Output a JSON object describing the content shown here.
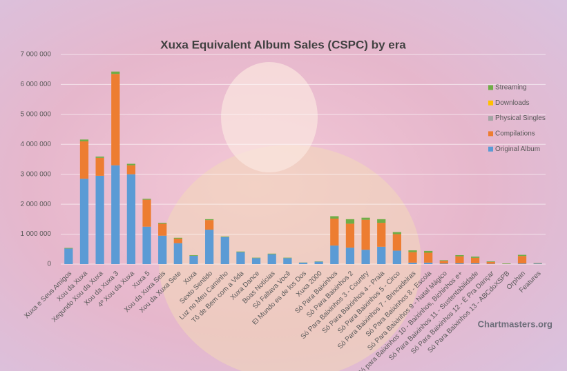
{
  "chart_data": {
    "type": "stacked_bar",
    "title": "Xuxa Equivalent Album Sales (CSPC) by era",
    "watermark": "Chartmasters.org",
    "categories": [
      "Xuxa e Seus Amigos",
      "Xou da Xuxa",
      "Xegundo Xou da Xuxa",
      "Xou da Xuxa 3",
      "4º Xou da Xuxa",
      "Xuxa 5",
      "Xou da Xuxa Seis",
      "Xou da Xuxa Sete",
      "Xuxa",
      "Sexto Sentido",
      "Luz no Meu Caminho",
      "Tô de Bem com a Vida",
      "Xuxa Dance",
      "Boas Notícias",
      "Só Faltava Você",
      "El Mundo es de los Dos",
      "Xuxa 2000",
      "Só Para Baixinhos",
      "Só Para Baixinhos 2",
      "Só Para Baixinhos 3 - Country",
      "Só Para Baixinhos 4 - Praia",
      "Só Para Baixinhos 5 - Circo",
      "Só Para Baixinhos 7 - Brincadeiras",
      "Só Para Baixinhos 8 - Escola",
      "Só Para Baixinhos 9 - Natal Mágico",
      "Só para Baixinhos 10 - Baixinhos, Bichinhos e+",
      "Só Para Baixinhos 11 - Sustentabilidade",
      "Só Para Baixinhos 12 - É Pra Dançar",
      "Só Para Baixinhos 13 - ABCdoXSPB",
      "Orphan",
      "Features"
    ],
    "series": [
      {
        "name": "Original Album",
        "color": "#5b9bd5",
        "values": [
          520000,
          2850000,
          2950000,
          3300000,
          3000000,
          1250000,
          950000,
          700000,
          280000,
          1150000,
          900000,
          400000,
          200000,
          330000,
          200000,
          50000,
          80000,
          620000,
          550000,
          480000,
          580000,
          450000,
          50000,
          50000,
          20000,
          30000,
          30000,
          10000,
          0,
          20000,
          20000
        ]
      },
      {
        "name": "Compilations",
        "color": "#ed7d31",
        "values": [
          0,
          1250000,
          600000,
          3050000,
          300000,
          900000,
          400000,
          150000,
          0,
          320000,
          0,
          0,
          0,
          0,
          0,
          0,
          0,
          900000,
          800000,
          1000000,
          800000,
          550000,
          350000,
          330000,
          90000,
          230000,
          180000,
          60000,
          0,
          250000,
          10000
        ]
      },
      {
        "name": "Physical Singles",
        "color": "#a5a5a5",
        "values": [
          0,
          0,
          0,
          0,
          0,
          0,
          0,
          0,
          0,
          0,
          0,
          0,
          0,
          0,
          0,
          0,
          0,
          0,
          0,
          0,
          0,
          0,
          0,
          0,
          0,
          0,
          0,
          0,
          0,
          0,
          0
        ]
      },
      {
        "name": "Downloads",
        "color": "#ffc000",
        "values": [
          0,
          0,
          0,
          0,
          0,
          0,
          0,
          0,
          0,
          0,
          0,
          0,
          0,
          0,
          0,
          0,
          0,
          0,
          0,
          0,
          0,
          0,
          0,
          0,
          0,
          0,
          0,
          0,
          0,
          0,
          0
        ]
      },
      {
        "name": "Streaming",
        "color": "#70ad47",
        "values": [
          20000,
          60000,
          40000,
          80000,
          50000,
          30000,
          30000,
          30000,
          20000,
          30000,
          20000,
          20000,
          15000,
          20000,
          15000,
          5000,
          10000,
          80000,
          150000,
          70000,
          120000,
          70000,
          60000,
          60000,
          20000,
          40000,
          40000,
          20000,
          20000,
          40000,
          10000
        ]
      }
    ],
    "ylim": [
      0,
      7000000
    ],
    "yticks": [
      0,
      {
        "value": 1000000,
        "label": "1 000 000"
      },
      {
        "value": 2000000,
        "label": "2 000 000"
      },
      {
        "value": 3000000,
        "label": "3 000 000"
      },
      {
        "value": 4000000,
        "label": "4 000 000"
      },
      {
        "value": 5000000,
        "label": "5 000 000"
      },
      {
        "value": 6000000,
        "label": "6 000 000"
      },
      {
        "value": 7000000,
        "label": "7 000 000"
      }
    ],
    "grid": true,
    "legend": "right"
  }
}
